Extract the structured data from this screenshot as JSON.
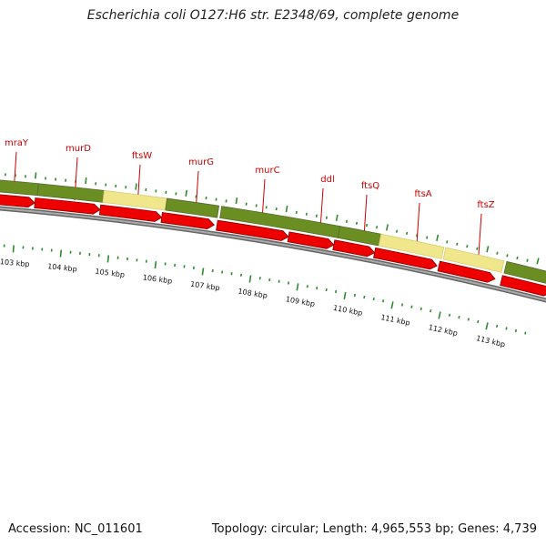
{
  "title": "Escherichia coli O127:H6 str. E2348/69, complete genome",
  "footer": {
    "accession": "Accession: NC_011601",
    "topology": "Topology: circular; Length: 4,965,553 bp; Genes: 4,739"
  },
  "colors": {
    "gene_label": "#cc0000",
    "label_line": "#cc0000",
    "cds_arrow": "#ee0000",
    "cds_arrow_edge": "#8b0000",
    "track_green": "#6b8e23",
    "track_yellow": "#f0e68c",
    "tick": "#2e8b2e",
    "backbone": "#808080"
  },
  "genes": [
    {
      "name": "mraY"
    },
    {
      "name": "murD"
    },
    {
      "name": "ftsW"
    },
    {
      "name": "murG"
    },
    {
      "name": "murC"
    },
    {
      "name": "ddl"
    },
    {
      "name": "ftsQ"
    },
    {
      "name": "ftsA"
    },
    {
      "name": "ftsZ"
    }
  ],
  "scale_labels": [
    "103 kbp",
    "104 kbp",
    "105 kbp",
    "106 kbp",
    "107 kbp",
    "108 kbp",
    "109 kbp",
    "110 kbp",
    "111 kbp",
    "112 kbp",
    "113 kbp"
  ]
}
